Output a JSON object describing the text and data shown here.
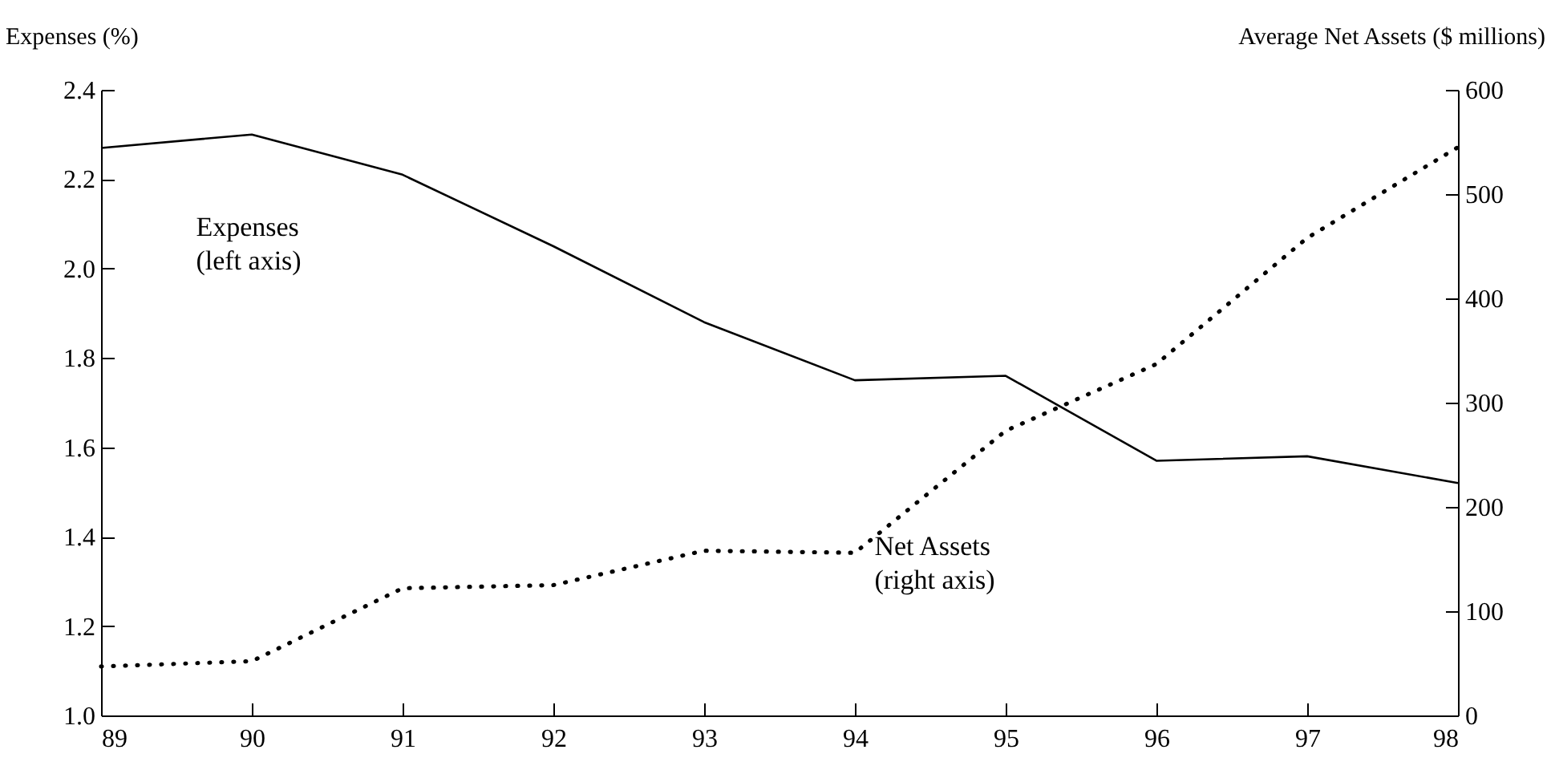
{
  "chart_data": {
    "type": "line",
    "ylabel": "Expenses (%)",
    "y2label": "Average Net Assets ($ millions)",
    "x": [
      89,
      90,
      91,
      92,
      93,
      94,
      95,
      96,
      97,
      98
    ],
    "xlim": [
      89,
      98
    ],
    "xticks": [
      89,
      90,
      91,
      92,
      93,
      94,
      95,
      96,
      97,
      98
    ],
    "ylim": [
      1.0,
      2.4
    ],
    "yticks": [
      {
        "value": 1.0,
        "label": "1.0"
      },
      1.2,
      1.4,
      1.6,
      1.8,
      {
        "value": 2.0,
        "label": "2.0"
      },
      2.2,
      2.4
    ],
    "y2lim": [
      0,
      600
    ],
    "y2ticks": [
      0,
      100,
      200,
      300,
      400,
      500,
      600
    ],
    "grid": false,
    "legend": false,
    "series": [
      {
        "name": "Expenses\n(left axis)",
        "color": "#000000",
        "line_style": "solid",
        "values": [
          2.27,
          2.3,
          2.21,
          2.05,
          1.88,
          1.75,
          1.76,
          1.57,
          1.58,
          1.52
        ]
      },
      {
        "name": "Net Assets\n(right axis)",
        "color": "#000000",
        "line_style": "dotted",
        "axis": "y2",
        "values": [
          47,
          52,
          122,
          125,
          158,
          156,
          273,
          337,
          458,
          545
        ]
      }
    ]
  }
}
